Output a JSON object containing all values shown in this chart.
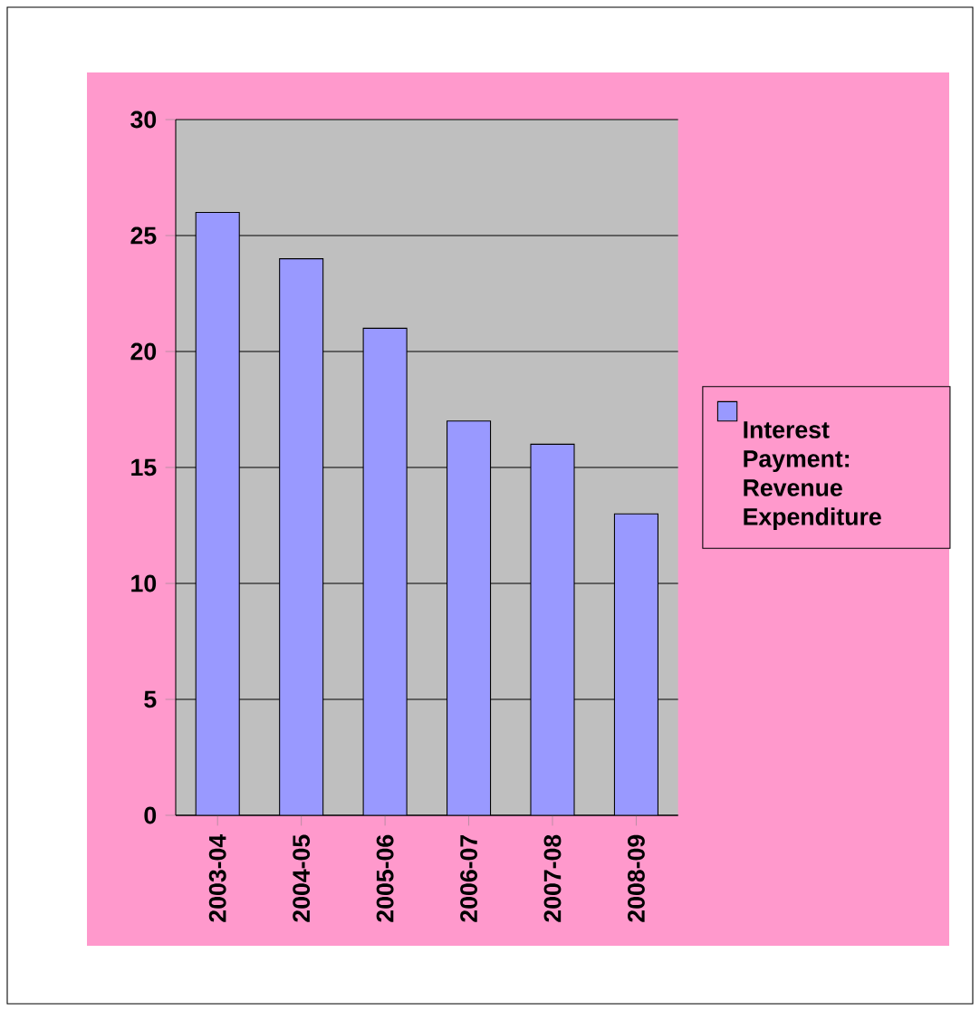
{
  "chart_data": {
    "type": "bar",
    "categories": [
      "2003-04",
      "2004-05",
      "2005-06",
      "2006-07",
      "2007-08",
      "2008-09"
    ],
    "series": [
      {
        "name": "Interest Payment: Revenue Expenditure",
        "color": "#9999ff",
        "values": [
          26,
          24,
          21,
          17,
          16,
          13
        ]
      }
    ],
    "ylim": [
      0,
      30
    ],
    "yticks": [
      0,
      5,
      10,
      15,
      20,
      25,
      30
    ],
    "grid": "y",
    "legend": "right"
  }
}
